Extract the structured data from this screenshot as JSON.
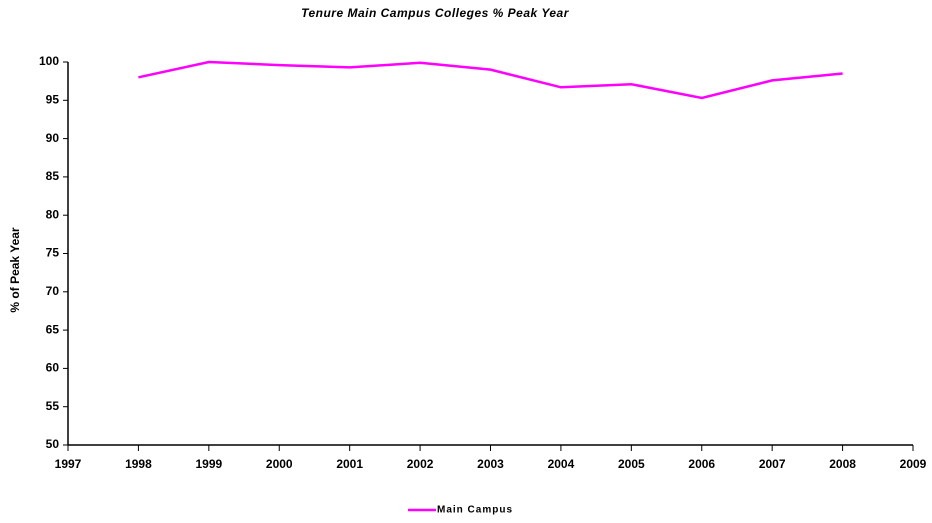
{
  "chart_data": {
    "type": "line",
    "title": "Tenure Main Campus Colleges % Peak Year",
    "y_label": "% of Peak Year",
    "x": [
      1998,
      1999,
      2000,
      2001,
      2002,
      2003,
      2004,
      2005,
      2006,
      2007,
      2008
    ],
    "series": [
      {
        "name": "Main Campus",
        "color": "#ff00ff",
        "values": [
          98,
          100,
          99.6,
          99.3,
          99.9,
          99,
          96.7,
          97.1,
          95.3,
          97.6,
          98.5
        ]
      }
    ],
    "xlim": [
      1997,
      2009
    ],
    "xticks": [
      1997,
      1998,
      1999,
      2000,
      2001,
      2002,
      2003,
      2004,
      2005,
      2006,
      2007,
      2008,
      2009
    ],
    "ylim": [
      50,
      100
    ],
    "yticks": [
      50,
      55,
      60,
      65,
      70,
      75,
      80,
      85,
      90,
      95,
      100
    ],
    "grid": false,
    "legend": "bottom"
  }
}
